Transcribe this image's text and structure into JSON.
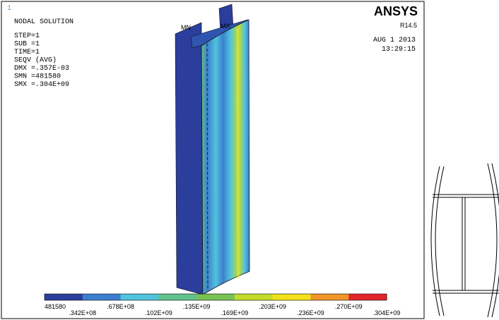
{
  "window_number": "1",
  "header": {
    "title": "NODAL SOLUTION",
    "lines": [
      "STEP=1",
      "SUB =1",
      "TIME=1",
      "SEQV     (AVG)",
      "DMX =.357E-03",
      "SMN =481580",
      "SMX =.304E+09"
    ]
  },
  "brand": {
    "name": "ANSYS",
    "version": "R14.5",
    "date": "AUG  1 2013",
    "time": "13:29:15"
  },
  "markers": [
    "MN",
    "MX"
  ],
  "legend": {
    "colors": [
      "#2b3e9c",
      "#3b7fd0",
      "#52c3dc",
      "#61c28e",
      "#78c254",
      "#c3dc2a",
      "#f3e21a",
      "#f0962a",
      "#e3262a"
    ],
    "labels": [
      "481580",
      ".342E+08",
      ".678E+08",
      ".102E+09",
      ".135E+09",
      ".169E+09",
      ".203E+09",
      ".236E+09",
      ".270E+09",
      ".304E+09"
    ]
  }
}
